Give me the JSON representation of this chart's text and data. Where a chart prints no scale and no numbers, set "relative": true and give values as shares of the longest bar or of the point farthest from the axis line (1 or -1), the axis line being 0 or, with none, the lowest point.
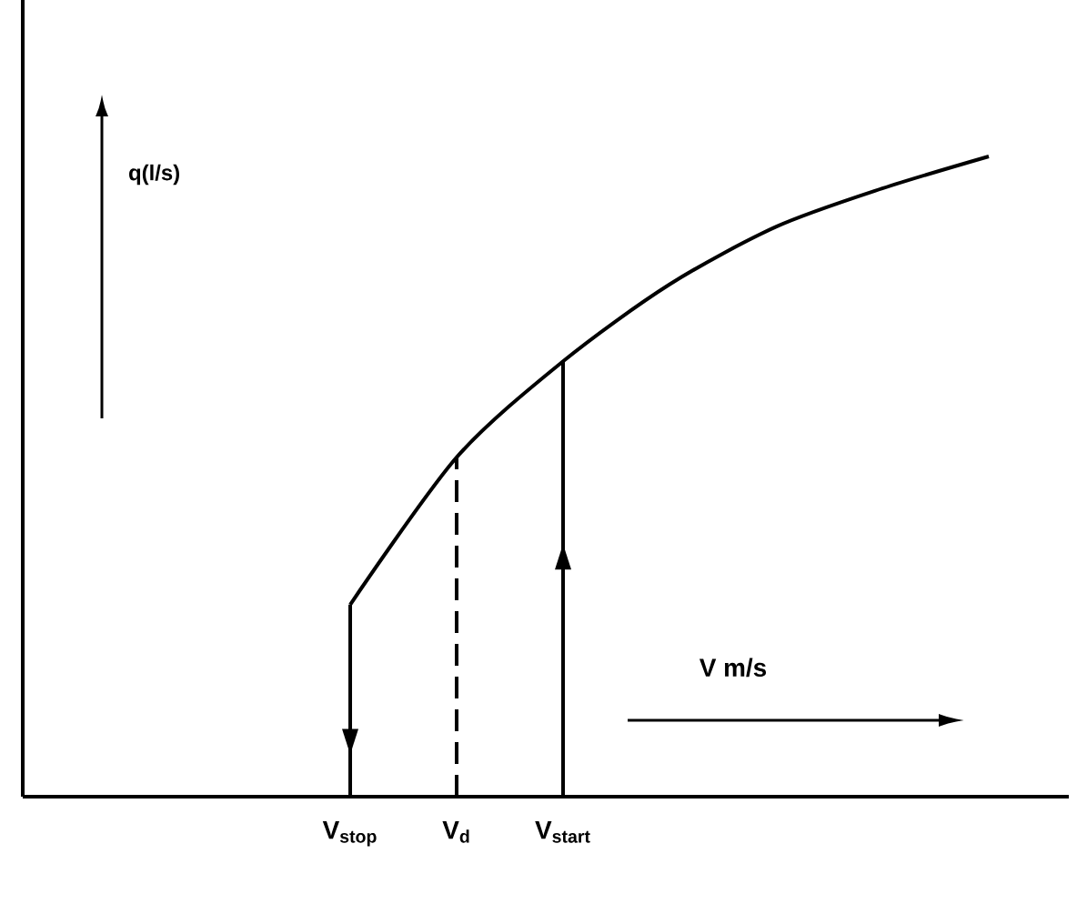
{
  "chart_data": {
    "type": "line",
    "relative": true,
    "xlabel": "V m/s",
    "ylabel": "q(l/s)",
    "tick_labels": "x",
    "line_style": "solid",
    "categories": [
      null,
      null,
      null,
      "V$_{stop}$",
      "V$_{d}$",
      "V$_{start}$",
      null,
      null,
      null,
      null
    ],
    "series": [
      {
        "color": "#000000",
        "values": [
          null,
          null,
          null,
          0.3,
          0.53,
          0.68,
          0.8,
          0.89,
          0.95,
          1.0
        ]
      }
    ],
    "ref_lines": [
      {
        "axis": "x",
        "value": "V$_{stop}$",
        "line_style": "solid"
      },
      {
        "axis": "x",
        "value": "V$_{d}$",
        "line_style": "dashed"
      },
      {
        "axis": "x",
        "value": "V$_{start}$",
        "line_style": "solid"
      }
    ]
  }
}
